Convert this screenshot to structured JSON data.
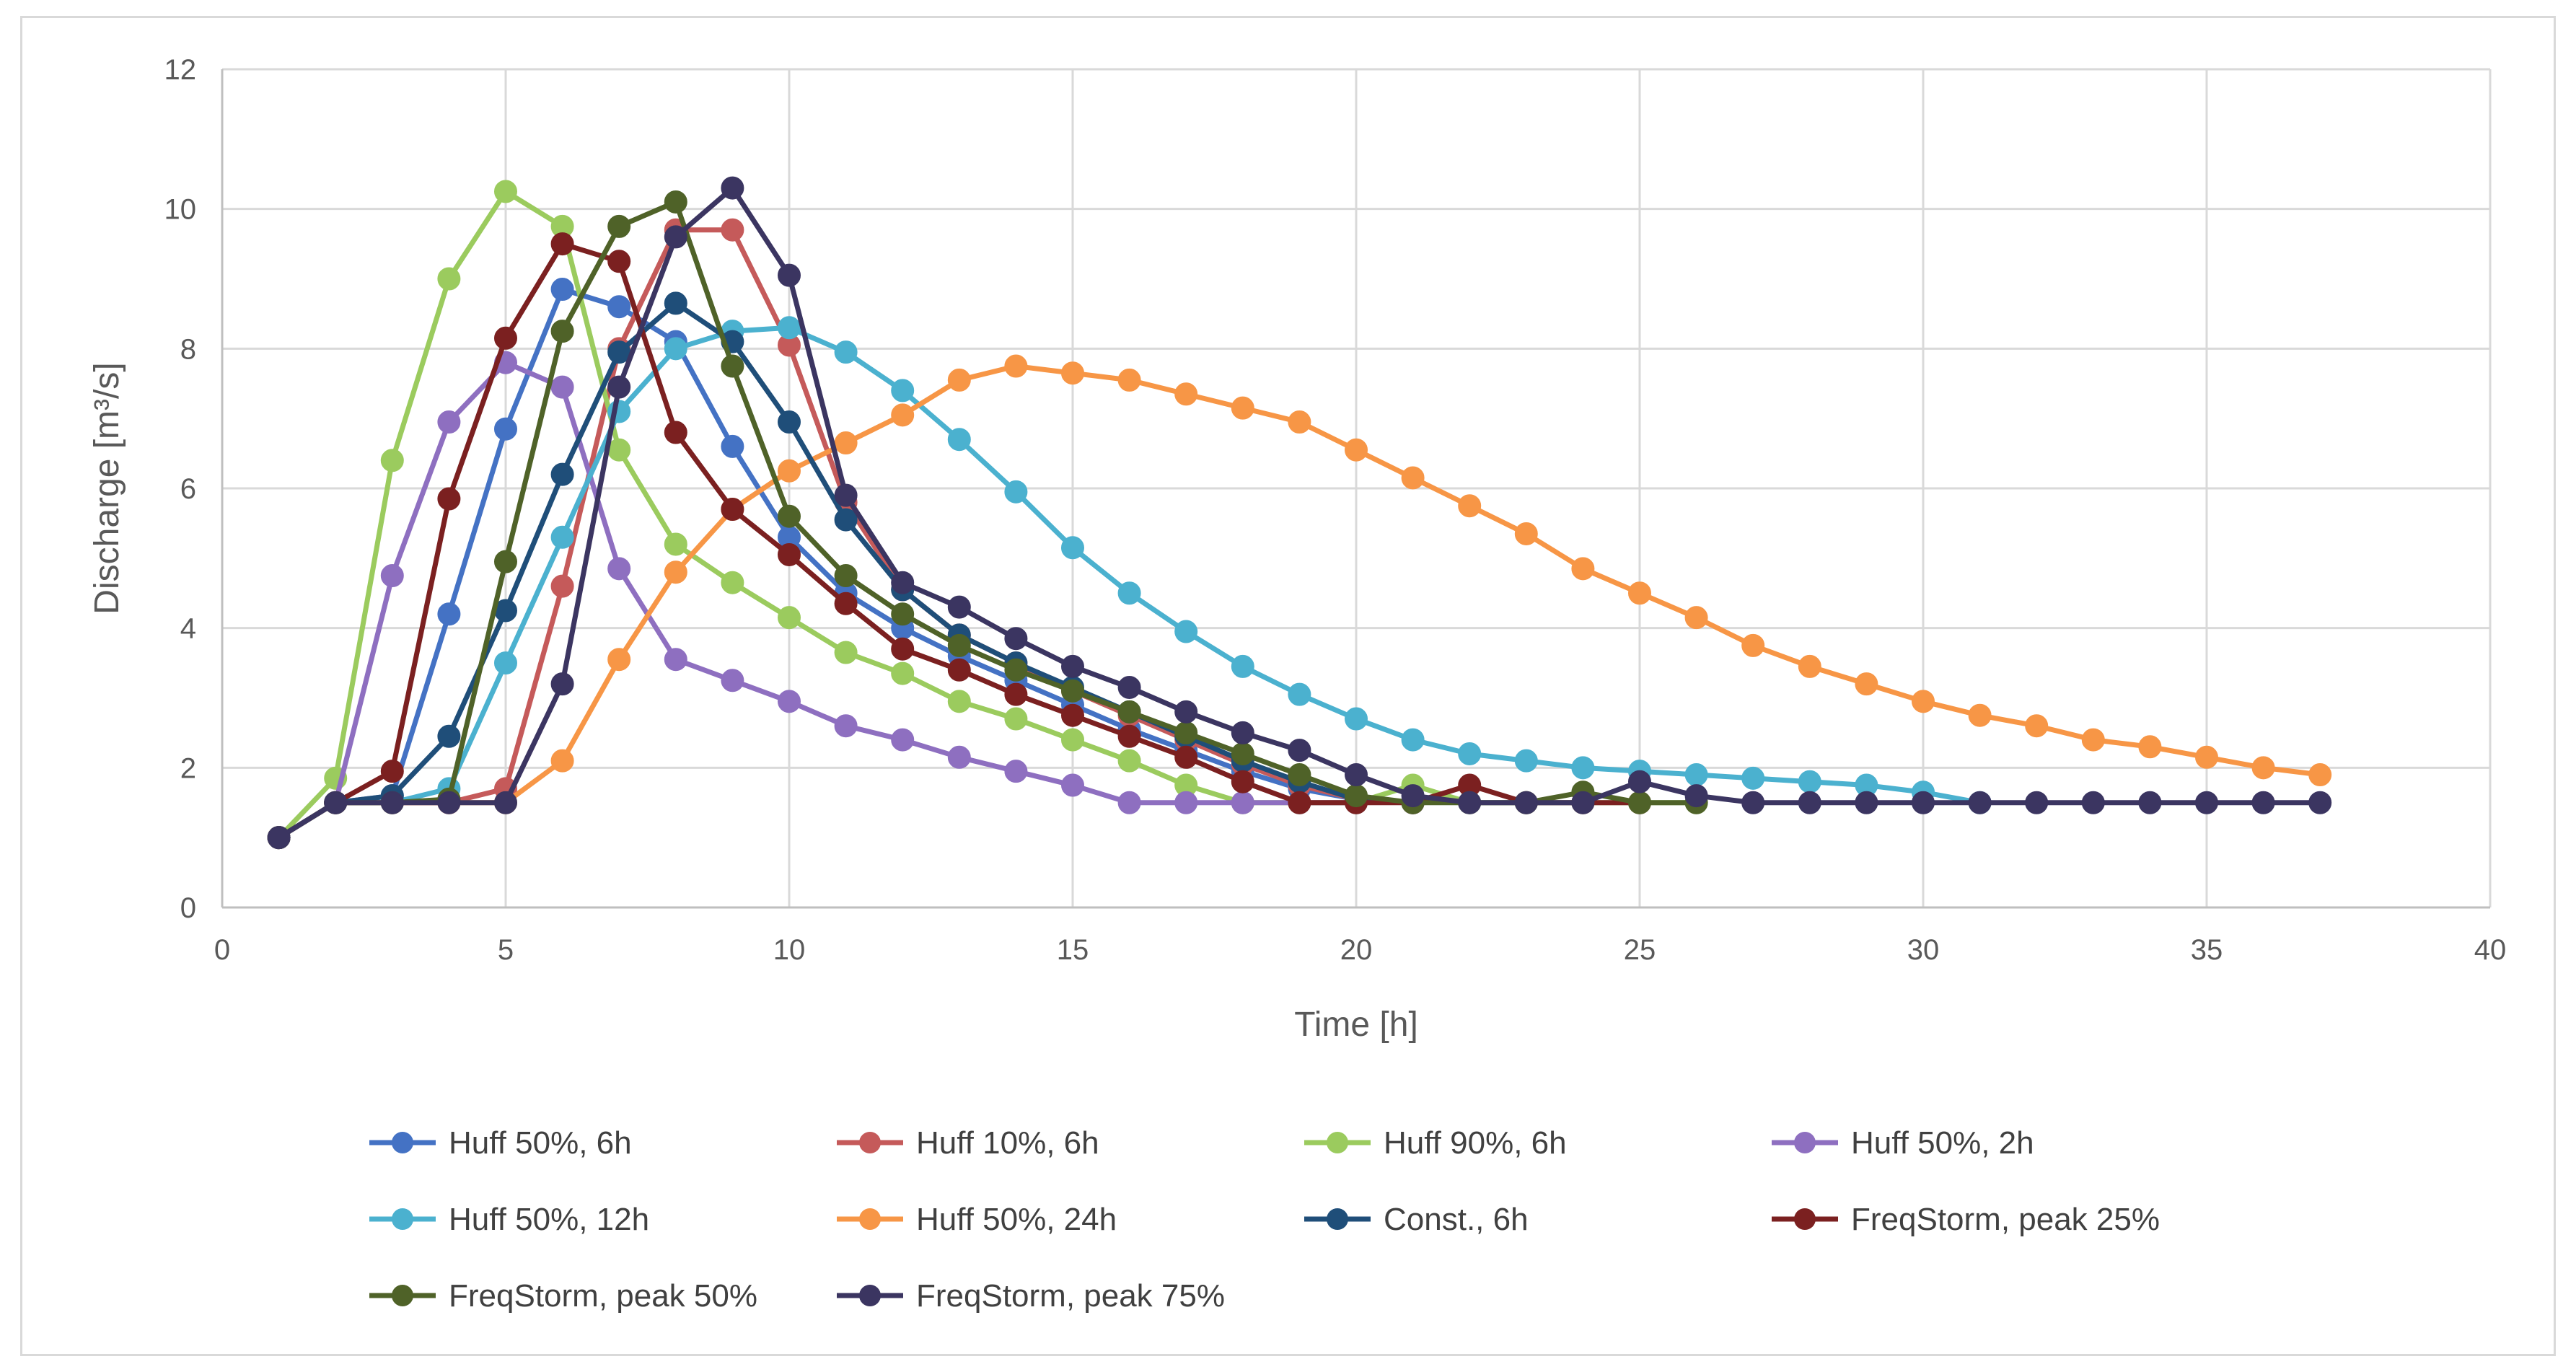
{
  "chart_data": {
    "type": "line",
    "title": "",
    "xlabel": "Time [h]",
    "ylabel": "Discharge [m³/s]",
    "xlim": [
      0,
      40
    ],
    "ylim": [
      0,
      12
    ],
    "xticks": [
      0,
      5,
      10,
      15,
      20,
      25,
      30,
      35,
      40
    ],
    "yticks": [
      0,
      2,
      4,
      6,
      8,
      10,
      12
    ],
    "grid": true,
    "legend_position": "bottom",
    "series": [
      {
        "name": "Huff 50%, 6h",
        "color": "#4472c4",
        "x": [
          1,
          2,
          3,
          4,
          5,
          6,
          7,
          8,
          9,
          10,
          11,
          12,
          13,
          14,
          15,
          16,
          17,
          18,
          19,
          20,
          21
        ],
        "y": [
          1.0,
          1.5,
          1.6,
          4.2,
          6.85,
          8.85,
          8.6,
          8.1,
          6.6,
          5.3,
          4.5,
          4.0,
          3.6,
          3.25,
          2.9,
          2.55,
          2.25,
          1.95,
          1.7,
          1.55,
          1.5
        ]
      },
      {
        "name": "Huff 10%, 6h",
        "color": "#c55a5a",
        "x": [
          1,
          2,
          3,
          4,
          5,
          6,
          7,
          8,
          9,
          10,
          11,
          12,
          13,
          14,
          15,
          16,
          17,
          18,
          19,
          20,
          21
        ],
        "y": [
          1.0,
          1.5,
          1.5,
          1.5,
          1.7,
          4.6,
          8.0,
          9.7,
          9.7,
          8.05,
          5.8,
          4.55,
          3.9,
          3.5,
          3.1,
          2.75,
          2.4,
          2.05,
          1.75,
          1.55,
          1.5
        ]
      },
      {
        "name": "Huff 90%, 6h",
        "color": "#9bcb5e",
        "x": [
          1,
          2,
          3,
          4,
          5,
          6,
          7,
          8,
          9,
          10,
          11,
          12,
          13,
          14,
          15,
          16,
          17,
          18,
          19,
          20,
          21,
          22,
          23,
          24,
          25,
          26
        ],
        "y": [
          1.0,
          1.85,
          6.4,
          9.0,
          10.25,
          9.75,
          6.55,
          5.2,
          4.65,
          4.15,
          3.65,
          3.35,
          2.95,
          2.7,
          2.4,
          2.1,
          1.75,
          1.5,
          1.5,
          1.5,
          1.75,
          1.5,
          1.5,
          1.5,
          1.5,
          1.5
        ]
      },
      {
        "name": "Huff 50%, 2h",
        "color": "#8e6fc0",
        "x": [
          1,
          2,
          3,
          4,
          5,
          6,
          7,
          8,
          9,
          10,
          11,
          12,
          13,
          14,
          15,
          16,
          17,
          18,
          19,
          20
        ],
        "y": [
          1.0,
          1.5,
          4.75,
          6.95,
          7.8,
          7.45,
          4.85,
          3.55,
          3.25,
          2.95,
          2.6,
          2.4,
          2.15,
          1.95,
          1.75,
          1.5,
          1.5,
          1.5,
          1.5,
          1.5
        ]
      },
      {
        "name": "Huff 50%, 12h",
        "color": "#4bb1cf",
        "x": [
          1,
          2,
          3,
          4,
          5,
          6,
          7,
          8,
          9,
          10,
          11,
          12,
          13,
          14,
          15,
          16,
          17,
          18,
          19,
          20,
          21,
          22,
          23,
          24,
          25,
          26,
          27,
          28,
          29,
          30,
          31
        ],
        "y": [
          1.0,
          1.5,
          1.5,
          1.7,
          3.5,
          5.3,
          7.1,
          8.0,
          8.25,
          8.3,
          7.95,
          7.4,
          6.7,
          5.95,
          5.15,
          4.5,
          3.95,
          3.45,
          3.05,
          2.7,
          2.4,
          2.2,
          2.1,
          2.0,
          1.95,
          1.9,
          1.85,
          1.8,
          1.75,
          1.65,
          1.5
        ]
      },
      {
        "name": "Huff 50%, 24h",
        "color": "#f79646",
        "x": [
          1,
          2,
          3,
          4,
          5,
          6,
          7,
          8,
          9,
          10,
          11,
          12,
          13,
          14,
          15,
          16,
          17,
          18,
          19,
          20,
          21,
          22,
          23,
          24,
          25,
          26,
          27,
          28,
          29,
          30,
          31,
          32,
          33,
          34,
          35,
          36,
          37
        ],
        "y": [
          1.0,
          1.5,
          1.5,
          1.5,
          1.5,
          2.1,
          3.55,
          4.8,
          5.7,
          6.25,
          6.65,
          7.05,
          7.55,
          7.75,
          7.65,
          7.55,
          7.35,
          7.15,
          6.95,
          6.55,
          6.15,
          5.75,
          5.35,
          4.85,
          4.5,
          4.15,
          3.75,
          3.45,
          3.2,
          2.95,
          2.75,
          2.6,
          2.4,
          2.3,
          2.15,
          2.0,
          1.9
        ]
      },
      {
        "name": "Const., 6h",
        "color": "#1f4e79",
        "x": [
          1,
          2,
          3,
          4,
          5,
          6,
          7,
          8,
          9,
          10,
          11,
          12,
          13,
          14,
          15,
          16,
          17,
          18,
          19,
          20,
          21
        ],
        "y": [
          1.0,
          1.5,
          1.6,
          2.45,
          4.25,
          6.2,
          7.95,
          8.65,
          8.1,
          6.95,
          5.55,
          4.55,
          3.9,
          3.5,
          3.15,
          2.8,
          2.45,
          2.1,
          1.8,
          1.55,
          1.5
        ]
      },
      {
        "name": "FreqStorm, peak 25%",
        "color": "#7b2020",
        "x": [
          1,
          2,
          3,
          4,
          5,
          6,
          7,
          8,
          9,
          10,
          11,
          12,
          13,
          14,
          15,
          16,
          17,
          18,
          19,
          20,
          21,
          22,
          23,
          24,
          25
        ],
        "y": [
          1.0,
          1.5,
          1.95,
          5.85,
          8.15,
          9.5,
          9.25,
          6.8,
          5.7,
          5.05,
          4.35,
          3.7,
          3.4,
          3.05,
          2.75,
          2.45,
          2.15,
          1.8,
          1.5,
          1.5,
          1.5,
          1.75,
          1.5,
          1.5,
          1.5
        ]
      },
      {
        "name": "FreqStorm, peak 50%",
        "color": "#4f6228",
        "x": [
          1,
          2,
          3,
          4,
          5,
          6,
          7,
          8,
          9,
          10,
          11,
          12,
          13,
          14,
          15,
          16,
          17,
          18,
          19,
          20,
          21,
          22,
          23,
          24,
          25,
          26
        ],
        "y": [
          1.0,
          1.5,
          1.5,
          1.55,
          4.95,
          8.25,
          9.75,
          10.1,
          7.75,
          5.6,
          4.75,
          4.2,
          3.75,
          3.4,
          3.1,
          2.8,
          2.5,
          2.2,
          1.9,
          1.6,
          1.5,
          1.5,
          1.5,
          1.65,
          1.5,
          1.5
        ]
      },
      {
        "name": "FreqStorm, peak 75%",
        "color": "#3b3561",
        "x": [
          1,
          2,
          3,
          4,
          5,
          6,
          7,
          8,
          9,
          10,
          11,
          12,
          13,
          14,
          15,
          16,
          17,
          18,
          19,
          20,
          21,
          22,
          23,
          24,
          25,
          26,
          27,
          28,
          29,
          30,
          31,
          32,
          33,
          34,
          35,
          36,
          37
        ],
        "y": [
          1.0,
          1.5,
          1.5,
          1.5,
          1.5,
          3.2,
          7.45,
          9.6,
          10.3,
          9.05,
          5.9,
          4.65,
          4.3,
          3.85,
          3.45,
          3.15,
          2.8,
          2.5,
          2.25,
          1.9,
          1.6,
          1.5,
          1.5,
          1.5,
          1.8,
          1.6,
          1.5,
          1.5,
          1.5,
          1.5,
          1.5,
          1.5,
          1.5,
          1.5,
          1.5,
          1.5,
          1.5
        ]
      }
    ]
  }
}
